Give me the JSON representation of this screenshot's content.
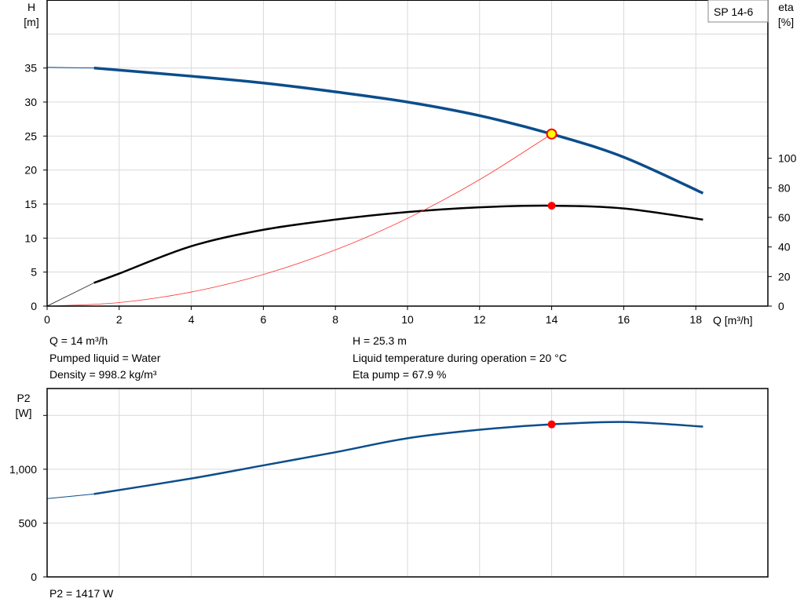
{
  "chart_data": [
    {
      "type": "line",
      "title": "",
      "legend": "SP 14-6",
      "legend_placement": "top-right",
      "xlabel": "Q [m³/h]",
      "ylabel_left": [
        "H",
        "[m]"
      ],
      "ylabel_right": [
        "eta",
        "[%]"
      ],
      "xlim": [
        0,
        20
      ],
      "ylim_left": [
        0,
        45
      ],
      "ylim_right": [
        0,
        207
      ],
      "x_ticks": [
        0,
        2,
        4,
        6,
        8,
        10,
        12,
        14,
        16,
        18
      ],
      "y_ticks_left": [
        0,
        5,
        10,
        15,
        20,
        25,
        30,
        35
      ],
      "y_ticks_right": [
        0,
        20,
        40,
        60,
        80,
        100
      ],
      "grid": true,
      "colors": {
        "head": "#0b4d8c",
        "eta": "#000000",
        "system": "#ff3030",
        "marker": "#ff0000",
        "duty_marker_fill": "#ffff00"
      },
      "series": [
        {
          "key": "head",
          "axis": "left",
          "x": [
            0,
            1.3,
            4,
            6,
            8,
            10,
            12,
            14,
            16,
            18.2
          ],
          "y": [
            35.1,
            35.0,
            33.8,
            32.8,
            31.5,
            30.0,
            28.0,
            25.3,
            21.9,
            16.6
          ]
        },
        {
          "key": "eta",
          "axis": "right",
          "x": [
            1.3,
            2,
            4,
            6,
            8,
            10,
            12,
            14,
            16,
            18.2
          ],
          "y": [
            15.7,
            22,
            40.5,
            51.6,
            58.5,
            63.6,
            66.8,
            67.9,
            66.0,
            58.5
          ]
        },
        {
          "key": "system",
          "axis": "left",
          "x": [
            0,
            2,
            4,
            6,
            8,
            10,
            12,
            14
          ],
          "y": [
            0,
            0.52,
            2.07,
            4.65,
            8.26,
            12.9,
            18.59,
            25.3
          ]
        }
      ],
      "duty_point": {
        "Q": 14,
        "H": 25.3,
        "eta": 67.9
      },
      "info": {
        "left": [
          "Q = 14 m³/h",
          "Pumped liquid = Water",
          "Density = 998.2 kg/m³"
        ],
        "right": [
          "H = 25.3 m",
          "Liquid temperature during operation = 20 °C",
          "Eta pump = 67.9 %"
        ]
      }
    },
    {
      "type": "line",
      "title": "",
      "ylabel": [
        "P2",
        "[W]"
      ],
      "xlim": [
        0,
        20
      ],
      "ylim": [
        0,
        1750
      ],
      "x_ticks": [
        0,
        2,
        4,
        6,
        8,
        10,
        12,
        14,
        16,
        18
      ],
      "y_ticks": [
        0,
        500,
        1000,
        1500
      ],
      "y_tick_labels": [
        "0",
        "500",
        "1,000",
        ""
      ],
      "grid": true,
      "colors": {
        "power": "#0b4d8c",
        "marker": "#ff0000"
      },
      "series": [
        {
          "key": "power",
          "x": [
            0,
            1.3,
            4,
            6,
            8,
            10,
            12,
            14,
            16,
            18.2
          ],
          "y": [
            727,
            770,
            914,
            1036,
            1158,
            1288,
            1367,
            1417,
            1439,
            1396
          ]
        }
      ],
      "duty_point": {
        "Q": 14,
        "P2": 1417
      },
      "info": [
        "P2 = 1417 W"
      ]
    }
  ]
}
